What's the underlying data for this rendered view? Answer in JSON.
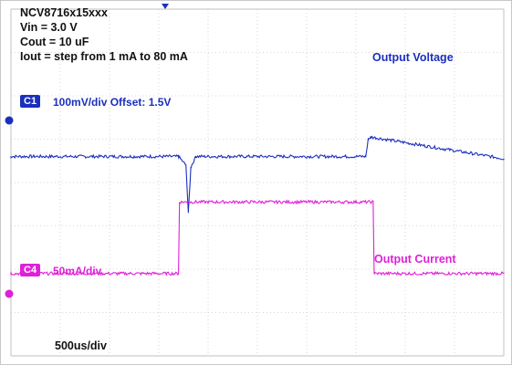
{
  "conditions": {
    "line1": "NCV8716x15xxx",
    "line2": "Vin = 3.0 V",
    "line3": "Cout = 10 uF",
    "line4": "Iout = step from 1 mA to 80 mA"
  },
  "channels": {
    "c1": {
      "badge": "C1",
      "label": "100mV/div Offset: 1.5V",
      "color": "#1a2fbf"
    },
    "c4": {
      "badge": "C4",
      "label": "50mA/div",
      "color": "#e020d8"
    }
  },
  "trace_labels": {
    "voltage": "Output Voltage",
    "current": "Output Current"
  },
  "timebase": "500us/div",
  "chart_data": {
    "type": "line",
    "grid": true,
    "x_divisions": 10,
    "y_divisions": 8,
    "series": [
      {
        "name": "Output Voltage",
        "x": [
          0,
          3.4,
          3.55,
          3.6,
          3.65,
          3.75,
          7.2,
          7.25,
          7.3,
          10
        ],
        "y": [
          4.6,
          4.6,
          4.4,
          3.3,
          4.35,
          4.6,
          4.6,
          5.0,
          5.05,
          4.55
        ]
      },
      {
        "name": "Output Current",
        "x": [
          0,
          3.4,
          3.42,
          7.35,
          7.37,
          10
        ],
        "y": [
          1.9,
          1.9,
          3.55,
          3.55,
          1.9,
          1.9
        ]
      }
    ]
  }
}
